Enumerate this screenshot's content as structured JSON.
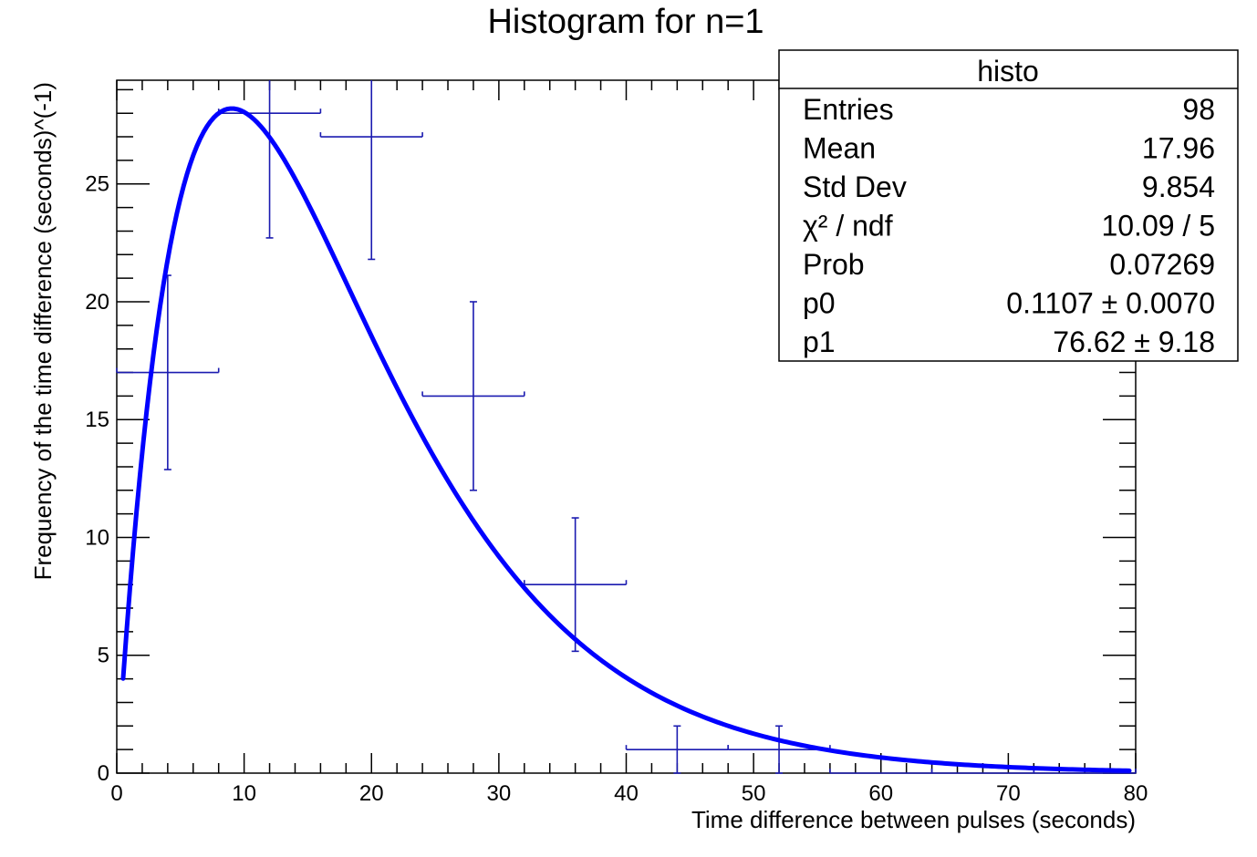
{
  "chart_data": {
    "type": "histogram",
    "title": "Histogram for n=1",
    "xlabel": "Time difference between pulses (seconds)",
    "ylabel": "Frequency of the time difference (seconds)^(-1)",
    "xlim": [
      0,
      80
    ],
    "ylim": [
      0,
      29.4
    ],
    "x_major_ticks": [
      0,
      10,
      20,
      30,
      40,
      50,
      60,
      70,
      80
    ],
    "x_tick_labels": [
      "0",
      "10",
      "20",
      "30",
      "40",
      "50",
      "60",
      "70",
      "80"
    ],
    "y_major_ticks": [
      0,
      5,
      10,
      15,
      20,
      25
    ],
    "y_tick_labels": [
      "0",
      "5",
      "10",
      "15",
      "20",
      "25"
    ],
    "grid": false,
    "bins": [
      {
        "low": 0,
        "high": 8,
        "value": 17,
        "err_low": 4.12,
        "err_high": 4.12
      },
      {
        "low": 8,
        "high": 16,
        "value": 28,
        "err_low": 5.29,
        "err_high": 5.29
      },
      {
        "low": 16,
        "high": 24,
        "value": 27,
        "err_low": 5.2,
        "err_high": 5.2
      },
      {
        "low": 24,
        "high": 32,
        "value": 16,
        "err_low": 4,
        "err_high": 4
      },
      {
        "low": 32,
        "high": 40,
        "value": 8,
        "err_low": 2.83,
        "err_high": 2.83
      },
      {
        "low": 40,
        "high": 48,
        "value": 1,
        "err_low": 1,
        "err_high": 1
      },
      {
        "low": 48,
        "high": 56,
        "value": 1,
        "err_low": 1,
        "err_high": 1
      },
      {
        "low": 56,
        "high": 64,
        "value": 0,
        "err_low": 0,
        "err_high": 0
      },
      {
        "low": 64,
        "high": 72,
        "value": 0,
        "err_low": 0,
        "err_high": 0
      },
      {
        "low": 72,
        "high": 80,
        "value": 0,
        "err_low": 0,
        "err_high": 0
      }
    ],
    "fit": {
      "p0": 0.1107,
      "p1": 76.62,
      "x_range": [
        0.5,
        79.5
      ]
    },
    "colors": {
      "histogram": "#1b1bb0",
      "fit": "#0000ff"
    },
    "stats_box": {
      "title": "histo",
      "rows": [
        {
          "label": "Entries",
          "value": "98"
        },
        {
          "label": "Mean",
          "value": "17.96"
        },
        {
          "label": "Std Dev",
          "value": "9.854"
        },
        {
          "label": "χ² / ndf",
          "value": "10.09 / 5"
        },
        {
          "label": "Prob",
          "value": "0.07269"
        },
        {
          "label": "p0",
          "value": "0.1107 ± 0.0070"
        },
        {
          "label": "p1",
          "value": "76.62 ± 9.18"
        }
      ]
    }
  }
}
